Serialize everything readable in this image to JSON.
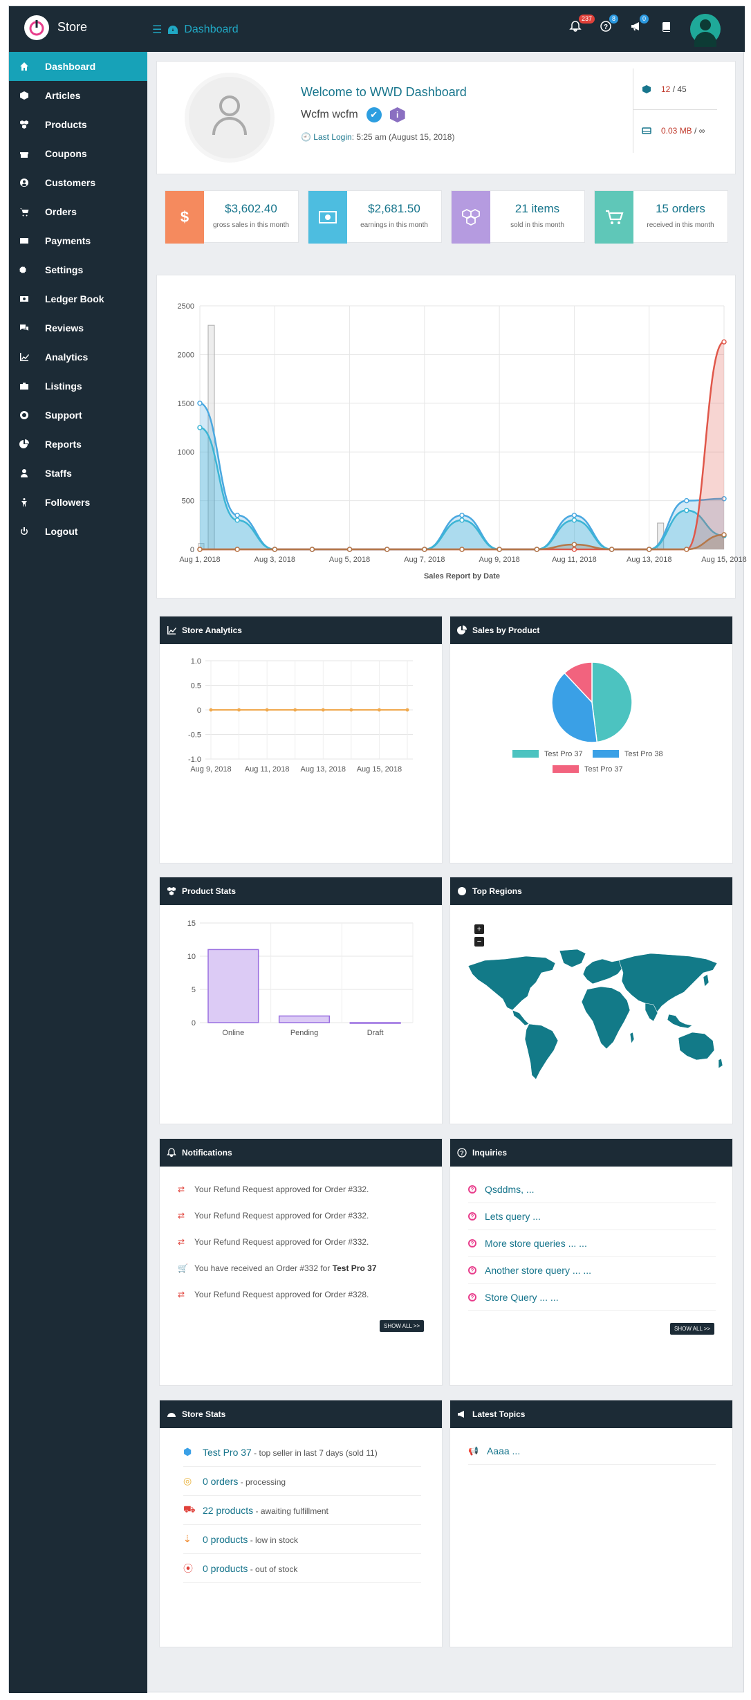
{
  "app": {
    "store_title": "Store",
    "breadcrumb": "Dashboard"
  },
  "header": {
    "notifications_count": "237",
    "help_count": "8",
    "announce_count": "0",
    "icons": [
      "bell-icon",
      "question-icon",
      "bullhorn-icon",
      "book-icon",
      "user-avatar"
    ]
  },
  "sidebar": {
    "items": [
      {
        "label": "Dashboard",
        "icon": "home-icon",
        "active": true
      },
      {
        "label": "Articles",
        "icon": "cube-icon"
      },
      {
        "label": "Products",
        "icon": "cubes-icon"
      },
      {
        "label": "Coupons",
        "icon": "gift-icon"
      },
      {
        "label": "Customers",
        "icon": "user-circle-icon"
      },
      {
        "label": "Orders",
        "icon": "cart-icon"
      },
      {
        "label": "Payments",
        "icon": "credit-card-icon"
      },
      {
        "label": "Settings",
        "icon": "cogs-icon"
      },
      {
        "label": "Ledger Book",
        "icon": "money-icon"
      },
      {
        "label": "Reviews",
        "icon": "comments-icon"
      },
      {
        "label": "Analytics",
        "icon": "line-chart-icon"
      },
      {
        "label": "Listings",
        "icon": "briefcase-icon"
      },
      {
        "label": "Support",
        "icon": "life-ring-icon"
      },
      {
        "label": "Reports",
        "icon": "pie-chart-icon"
      },
      {
        "label": "Staffs",
        "icon": "user-icon"
      },
      {
        "label": "Followers",
        "icon": "child-icon"
      },
      {
        "label": "Logout",
        "icon": "power-icon"
      }
    ]
  },
  "welcome": {
    "title": "Welcome to WWD Dashboard",
    "user": "Wcfm wcfm",
    "last_login_label": "Last Login",
    "last_login_value": ": 5:25 am (August 15, 2018)",
    "products_used": "12",
    "products_limit": " / 45",
    "space_used": "0.03 MB",
    "space_limit": " / ∞"
  },
  "stats": [
    {
      "icon": "$",
      "value": "$3,602.40",
      "label": "gross sales in this month",
      "color": "#f58a5e"
    },
    {
      "icon": "money",
      "value": "$2,681.50",
      "label": "earnings in this month",
      "color": "#4dbde0"
    },
    {
      "icon": "cubes",
      "value": "21 items",
      "label": "sold in this month",
      "color": "#b59be0"
    },
    {
      "icon": "cart",
      "value": "15 orders",
      "label": "received in this month",
      "color": "#5fc7b8"
    }
  ],
  "sales_chart": {
    "chart_data": {
      "type": "line",
      "title": "",
      "xlabel": "Sales Report by Date",
      "ylabel": "",
      "ylim": [
        0,
        2500
      ],
      "yticks": [
        "2500",
        "2000",
        "1500",
        "1000",
        "500",
        "0"
      ],
      "xticks": [
        "Aug 1, 2018",
        "Aug 3, 2018",
        "Aug 5, 2018",
        "Aug 7, 2018",
        "Aug 9, 2018",
        "Aug 11, 2018",
        "Aug 13, 2018",
        "Aug 15, 2018"
      ],
      "x": [
        1,
        2,
        3,
        4,
        5,
        6,
        7,
        8,
        9,
        10,
        11,
        12,
        13,
        14,
        15
      ],
      "series": [
        {
          "type": "line",
          "color": "#4aa8e0",
          "values": [
            1500,
            350,
            0,
            0,
            0,
            0,
            0,
            350,
            0,
            0,
            350,
            0,
            0,
            500,
            520
          ]
        },
        {
          "type": "line",
          "color": "#3cb5d5",
          "values": [
            1250,
            300,
            0,
            0,
            0,
            0,
            0,
            300,
            0,
            0,
            300,
            0,
            0,
            400,
            140
          ]
        },
        {
          "type": "line",
          "color": "#e0574a",
          "values": [
            0,
            0,
            0,
            0,
            0,
            0,
            0,
            0,
            0,
            0,
            0,
            0,
            0,
            0,
            2130
          ]
        },
        {
          "type": "line",
          "color": "#b5784a",
          "values": [
            0,
            0,
            0,
            0,
            0,
            0,
            0,
            0,
            0,
            0,
            50,
            0,
            0,
            0,
            150
          ]
        },
        {
          "type": "bar",
          "color": "#dcdcdc",
          "values": [
            2300,
            0,
            0,
            0,
            0,
            0,
            0,
            0,
            0,
            0,
            0,
            0,
            270,
            0,
            0
          ],
          "first_bar_value": 60
        }
      ]
    }
  },
  "store_analytics": {
    "title": "Store Analytics",
    "chart_data": {
      "type": "line",
      "ylim": [
        -1.0,
        1.0
      ],
      "yticks": [
        "1.0",
        "0.5",
        "0",
        "-0.5",
        "-1.0"
      ],
      "xticks": [
        "Aug 9, 2018",
        "Aug 11, 2018",
        "Aug 13, 2018",
        "Aug 15, 2018"
      ],
      "series": [
        {
          "color": "#f0a94e",
          "values": [
            0,
            0,
            0,
            0,
            0,
            0,
            0,
            0
          ]
        }
      ]
    }
  },
  "sales_by_product": {
    "title": "Sales by Product",
    "chart_data": {
      "type": "pie",
      "slices": [
        {
          "label": "Test Pro 37",
          "value": 48,
          "color": "#4cc3c0"
        },
        {
          "label": "Test Pro 38",
          "value": 40,
          "color": "#3aa0e6"
        },
        {
          "label": "Test Pro 37",
          "value": 12,
          "color": "#f2637e"
        }
      ]
    }
  },
  "product_stats": {
    "title": "Product Stats",
    "chart_data": {
      "type": "bar",
      "categories": [
        "Online",
        "Pending",
        "Draft"
      ],
      "values": [
        11,
        1,
        0
      ],
      "ylim": [
        0,
        15
      ],
      "yticks": [
        "15",
        "10",
        "5",
        "0"
      ]
    }
  },
  "top_regions": {
    "title": "Top Regions",
    "zoom_in": "+",
    "zoom_out": "−"
  },
  "notifications": {
    "title": "Notifications",
    "items": [
      {
        "icon": "refund-icon",
        "text": "Your Refund Request approved for Order #332.",
        "bold": ""
      },
      {
        "icon": "refund-icon",
        "text": "Your Refund Request approved for Order #332.",
        "bold": ""
      },
      {
        "icon": "refund-icon",
        "text": "Your Refund Request approved for Order #332.",
        "bold": ""
      },
      {
        "icon": "cart-icon",
        "text": "You have received an Order #332 for ",
        "bold": "Test Pro 37"
      },
      {
        "icon": "refund-icon",
        "text": "Your Refund Request approved for Order #328.",
        "bold": ""
      }
    ],
    "show_all": "SHOW ALL >>"
  },
  "inquiries": {
    "title": "Inquiries",
    "items": [
      "Qsddms, ...",
      "Lets query ...",
      "More store queries ... ...",
      "Another store query ... ...",
      "Store Query ... ..."
    ],
    "show_all": "SHOW ALL >>"
  },
  "store_stats": {
    "title": "Store Stats",
    "items": [
      {
        "icon": "cube-icon",
        "color": "#3aa0e6",
        "link": "Test Pro 37",
        "text": " - top seller in last 7 days (sold 11)"
      },
      {
        "icon": "life-ring-icon",
        "color": "#e8b23a",
        "link": "0 orders",
        "text": " - processing"
      },
      {
        "icon": "truck-icon",
        "color": "#e0413a",
        "link": "22 products",
        "text": " - awaiting fulfillment"
      },
      {
        "icon": "sort-amount-icon",
        "color": "#f08a2e",
        "link": "0 products",
        "text": " - low in stock"
      },
      {
        "icon": "dot-circle-icon",
        "color": "#e0413a",
        "link": "0 products",
        "text": " - out of stock"
      }
    ]
  },
  "latest_topics": {
    "title": "Latest Topics",
    "items": [
      "Aaaa ..."
    ]
  }
}
